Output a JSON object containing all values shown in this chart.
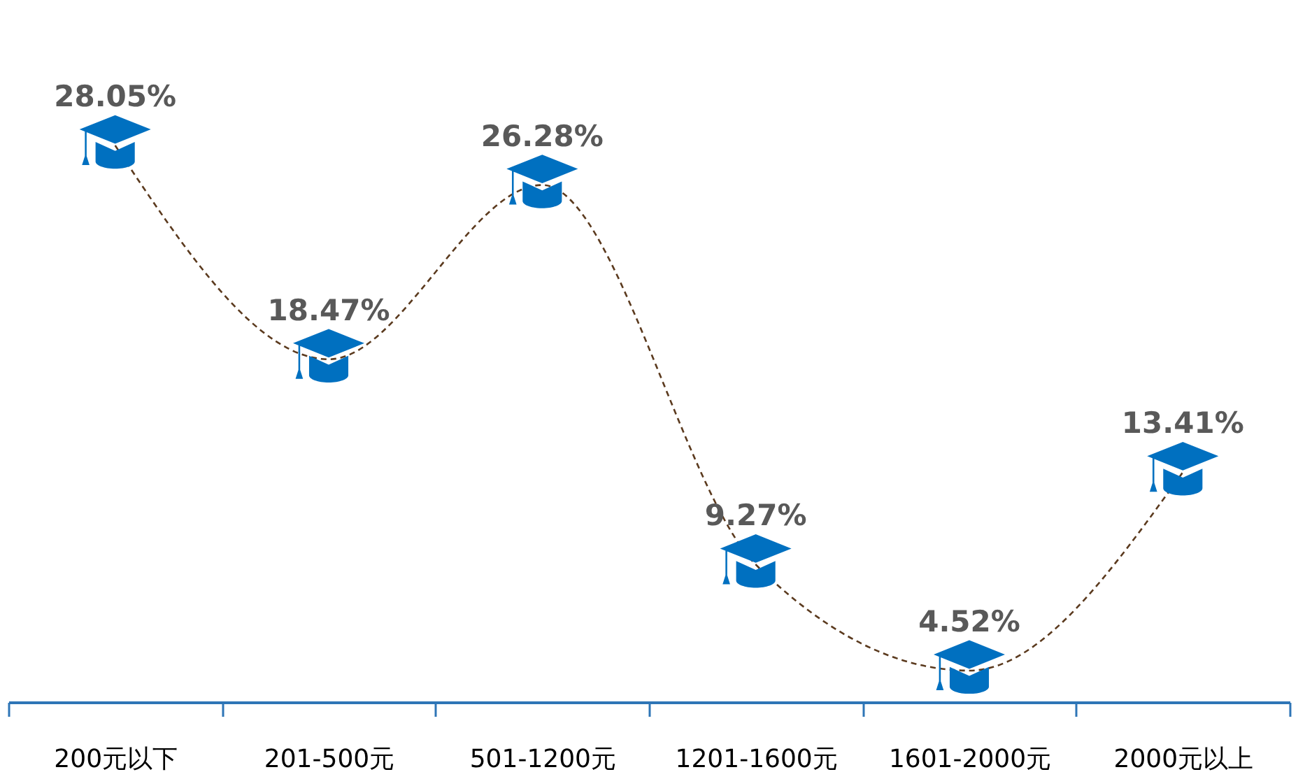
{
  "chart_data": {
    "type": "line",
    "categories": [
      "200元以下",
      "201-500元",
      "501-1200元",
      "1201-1600元",
      "1601-2000元",
      "2000元以上"
    ],
    "series": [
      {
        "color": "#5b3a1e",
        "values": [
          28.05,
          18.47,
          26.28,
          9.27,
          4.52,
          13.41
        ],
        "value_labels": [
          "28.05%",
          "18.47%",
          "26.28%",
          "9.27%",
          "4.52%",
          "13.41%"
        ]
      }
    ],
    "line_style": "dashed",
    "grid": false,
    "tick_labels": "x"
  }
}
